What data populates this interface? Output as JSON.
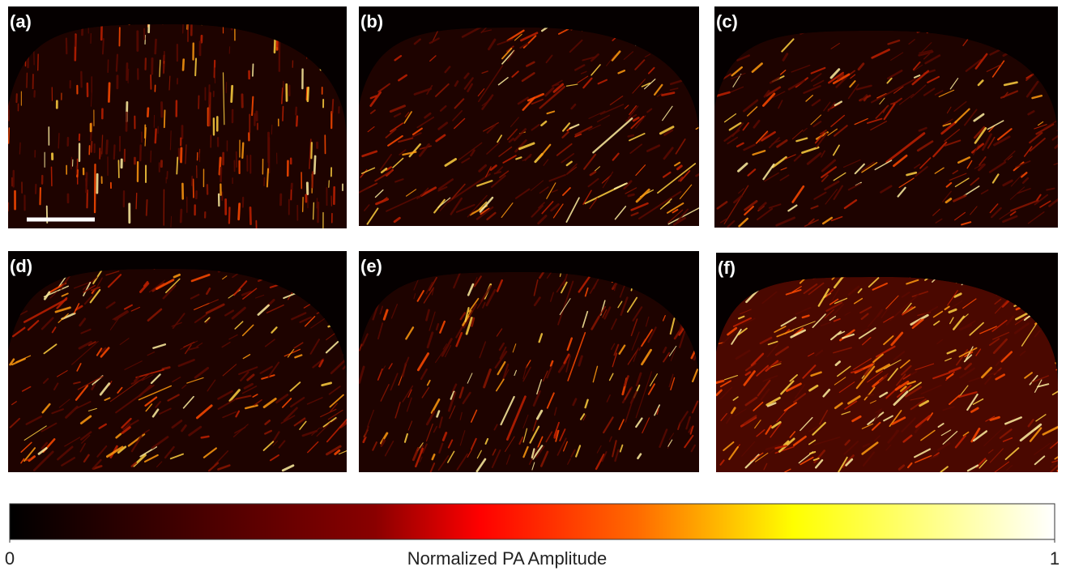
{
  "panels": [
    {
      "label": "(a)"
    },
    {
      "label": "(b)"
    },
    {
      "label": "(c)"
    },
    {
      "label": "(d)"
    },
    {
      "label": "(e)"
    },
    {
      "label": "(f)"
    }
  ],
  "colorbar": {
    "label": "Normalized PA  Amplitude",
    "lim": [
      0,
      1
    ],
    "ticks": [
      0,
      1
    ]
  }
}
